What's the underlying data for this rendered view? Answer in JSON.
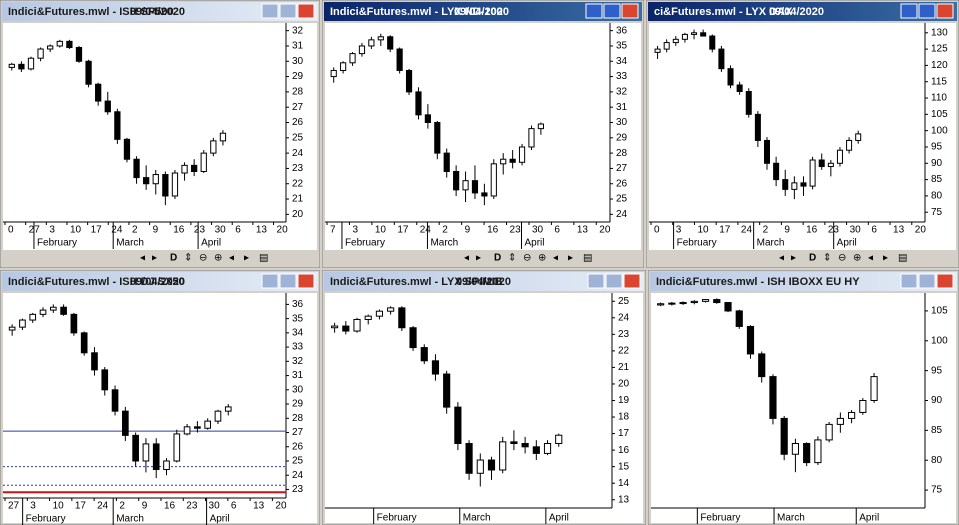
{
  "toolbar_letter": "D",
  "chart_data": [
    {
      "type": "candlestick",
      "title": "Indici&Futures.mwl - ISH SP500",
      "date": "09/04/2020",
      "active": false,
      "ylim": [
        19.5,
        32.5
      ],
      "yticks": [
        20,
        21,
        22,
        23,
        24,
        25,
        26,
        27,
        28,
        29,
        30,
        31,
        32
      ],
      "days": [
        "0",
        "27",
        "3",
        "10",
        "17",
        "24",
        "2",
        "9",
        "16",
        "23",
        "30",
        "6",
        "13",
        "20"
      ],
      "months": [
        "February",
        "March",
        "April"
      ],
      "candles": [
        [
          29.6,
          29.9,
          29.4,
          29.8
        ],
        [
          29.8,
          30.0,
          29.3,
          29.5
        ],
        [
          29.5,
          30.3,
          29.4,
          30.2
        ],
        [
          30.2,
          30.9,
          30.0,
          30.8
        ],
        [
          30.8,
          31.1,
          30.6,
          31.0
        ],
        [
          31.0,
          31.4,
          30.9,
          31.3
        ],
        [
          31.3,
          31.4,
          30.8,
          30.9
        ],
        [
          30.9,
          31.0,
          29.9,
          30.0
        ],
        [
          30.0,
          30.1,
          28.3,
          28.5
        ],
        [
          28.5,
          28.6,
          27.1,
          27.4
        ],
        [
          27.4,
          28.0,
          26.5,
          26.7
        ],
        [
          26.7,
          26.9,
          24.6,
          24.9
        ],
        [
          24.9,
          25.0,
          23.4,
          23.6
        ],
        [
          23.6,
          23.8,
          22.0,
          22.4
        ],
        [
          22.4,
          23.2,
          21.6,
          22.0
        ],
        [
          22.0,
          22.9,
          21.3,
          22.6
        ],
        [
          22.6,
          22.8,
          20.6,
          21.2
        ],
        [
          21.2,
          22.9,
          21.0,
          22.7
        ],
        [
          22.7,
          23.4,
          22.2,
          23.2
        ],
        [
          23.2,
          23.6,
          22.5,
          22.8
        ],
        [
          22.8,
          24.2,
          22.7,
          24.0
        ],
        [
          24.0,
          25.0,
          23.8,
          24.8
        ],
        [
          24.8,
          25.5,
          24.5,
          25.3
        ]
      ]
    },
    {
      "type": "candlestick",
      "title": "Indici&Futures.mwl - LYX ND-100",
      "date": "09/04/2020",
      "active": true,
      "ylim": [
        23.5,
        36.5
      ],
      "yticks": [
        24,
        25,
        26,
        27,
        28,
        29,
        30,
        31,
        32,
        33,
        34,
        35,
        36
      ],
      "days": [
        "7",
        "3",
        "10",
        "17",
        "24",
        "2",
        "9",
        "16",
        "23",
        "30",
        "6",
        "13",
        "20"
      ],
      "months": [
        "February",
        "March",
        "April"
      ],
      "candles": [
        [
          33.0,
          33.6,
          32.6,
          33.4
        ],
        [
          33.4,
          34.0,
          33.2,
          33.9
        ],
        [
          33.9,
          34.6,
          33.7,
          34.5
        ],
        [
          34.5,
          35.2,
          34.3,
          35.0
        ],
        [
          35.0,
          35.6,
          34.8,
          35.4
        ],
        [
          35.4,
          35.8,
          35.0,
          35.6
        ],
        [
          35.6,
          35.7,
          34.6,
          34.8
        ],
        [
          34.8,
          34.9,
          33.2,
          33.4
        ],
        [
          33.4,
          33.5,
          31.8,
          32.0
        ],
        [
          32.0,
          32.3,
          30.2,
          30.5
        ],
        [
          30.5,
          31.2,
          29.6,
          30.0
        ],
        [
          30.0,
          30.1,
          27.6,
          28.0
        ],
        [
          28.0,
          28.3,
          26.4,
          26.8
        ],
        [
          26.8,
          27.2,
          25.2,
          25.6
        ],
        [
          25.6,
          26.8,
          24.8,
          26.2
        ],
        [
          26.2,
          27.2,
          25.0,
          25.4
        ],
        [
          25.4,
          26.0,
          24.6,
          25.2
        ],
        [
          25.2,
          27.6,
          25.0,
          27.3
        ],
        [
          27.3,
          28.0,
          26.6,
          27.6
        ],
        [
          27.6,
          28.2,
          27.0,
          27.4
        ],
        [
          27.4,
          28.6,
          27.2,
          28.4
        ],
        [
          28.4,
          29.8,
          28.2,
          29.6
        ],
        [
          29.6,
          30.0,
          29.2,
          29.9
        ]
      ]
    },
    {
      "type": "candlestick",
      "title": "ci&Futures.mwl - LYX DAX",
      "date": "09/04/2020",
      "active": true,
      "ylim": [
        72,
        133
      ],
      "yticks": [
        75,
        80,
        85,
        90,
        95,
        100,
        105,
        110,
        115,
        120,
        125,
        130
      ],
      "days": [
        "0",
        "3",
        "10",
        "17",
        "24",
        "2",
        "9",
        "16",
        "23",
        "30",
        "6",
        "13",
        "20"
      ],
      "months": [
        "February",
        "March",
        "April"
      ],
      "candles": [
        [
          124,
          126,
          122,
          125
        ],
        [
          125,
          128,
          124,
          127
        ],
        [
          127,
          129,
          126,
          128
        ],
        [
          128,
          130,
          127,
          129.5
        ],
        [
          129.5,
          131,
          128,
          130
        ],
        [
          130,
          131,
          129,
          129
        ],
        [
          129,
          129.5,
          124,
          125
        ],
        [
          125,
          126,
          118,
          119
        ],
        [
          119,
          120,
          113,
          114
        ],
        [
          114,
          115,
          111,
          112
        ],
        [
          112,
          113,
          104,
          105
        ],
        [
          105,
          106,
          95,
          97
        ],
        [
          97,
          98,
          88,
          90
        ],
        [
          90,
          92,
          83,
          85
        ],
        [
          85,
          88,
          80,
          82
        ],
        [
          82,
          86,
          79,
          84
        ],
        [
          84,
          86,
          80,
          83
        ],
        [
          83,
          92,
          82,
          91
        ],
        [
          91,
          93,
          88,
          89
        ],
        [
          89,
          91,
          86,
          90
        ],
        [
          90,
          95,
          89,
          94
        ],
        [
          94,
          98,
          93,
          97
        ],
        [
          97,
          100,
          96,
          99
        ]
      ]
    },
    {
      "type": "candlestick",
      "title": "Indici&Futures.mwl - ISH DJ SX50",
      "date": "09/04/2020",
      "active": false,
      "ylim": [
        22.4,
        36.8
      ],
      "yticks": [
        23,
        24,
        25,
        26,
        27,
        28,
        29,
        30,
        31,
        32,
        33,
        34,
        35,
        36
      ],
      "days": [
        "27",
        "3",
        "10",
        "17",
        "24",
        "2",
        "9",
        "16",
        "23",
        "30",
        "6",
        "13",
        "20"
      ],
      "months": [
        "February",
        "March",
        "April"
      ],
      "levels": [
        {
          "value": 27.1,
          "color": "#2d3f9e",
          "style": "solid"
        },
        {
          "value": 24.6,
          "color": "#2d3f9e",
          "style": "dotted"
        },
        {
          "value": 23.3,
          "color": "#2d3f9e",
          "style": "dotted"
        },
        {
          "value": 22.8,
          "color": "#d01010",
          "style": "solid"
        }
      ],
      "candles": [
        [
          34.2,
          34.6,
          33.8,
          34.4
        ],
        [
          34.4,
          35.0,
          34.2,
          34.9
        ],
        [
          34.9,
          35.4,
          34.7,
          35.3
        ],
        [
          35.3,
          35.8,
          35.1,
          35.6
        ],
        [
          35.6,
          36.0,
          35.4,
          35.8
        ],
        [
          35.8,
          36.0,
          35.2,
          35.3
        ],
        [
          35.3,
          35.4,
          33.8,
          34.0
        ],
        [
          34.0,
          34.1,
          32.4,
          32.6
        ],
        [
          32.6,
          33.0,
          31.0,
          31.4
        ],
        [
          31.4,
          31.6,
          29.6,
          30.0
        ],
        [
          30.0,
          30.3,
          28.2,
          28.5
        ],
        [
          28.5,
          28.8,
          26.4,
          26.8
        ],
        [
          26.8,
          27.0,
          24.6,
          25.0
        ],
        [
          25.0,
          26.6,
          24.2,
          26.2
        ],
        [
          26.2,
          26.6,
          23.8,
          24.4
        ],
        [
          24.4,
          25.2,
          24.0,
          25.0
        ],
        [
          25.0,
          27.2,
          24.9,
          26.9
        ],
        [
          26.9,
          27.6,
          26.8,
          27.4
        ],
        [
          27.4,
          27.8,
          27.0,
          27.3
        ],
        [
          27.3,
          28.0,
          27.2,
          27.8
        ],
        [
          27.8,
          28.6,
          27.6,
          28.5
        ],
        [
          28.5,
          29.0,
          28.2,
          28.8
        ]
      ]
    },
    {
      "type": "candlestick",
      "title": "Indici&Futures.mwl - LYX SP/MIB",
      "date": "09/04/2020",
      "active": false,
      "ylim": [
        12.5,
        25.5
      ],
      "yticks": [
        13,
        14,
        15,
        16,
        17,
        18,
        19,
        20,
        21,
        22,
        23,
        24,
        25
      ],
      "months": [
        "February",
        "March",
        "April"
      ],
      "candles": [
        [
          23.4,
          23.7,
          23.1,
          23.5
        ],
        [
          23.5,
          23.8,
          23.0,
          23.2
        ],
        [
          23.2,
          24.0,
          23.1,
          23.9
        ],
        [
          23.9,
          24.2,
          23.6,
          24.1
        ],
        [
          24.1,
          24.5,
          23.9,
          24.4
        ],
        [
          24.4,
          24.7,
          24.2,
          24.6
        ],
        [
          24.6,
          24.7,
          23.2,
          23.4
        ],
        [
          23.4,
          23.5,
          22.0,
          22.2
        ],
        [
          22.2,
          22.4,
          21.2,
          21.4
        ],
        [
          21.4,
          21.8,
          20.2,
          20.6
        ],
        [
          20.6,
          20.8,
          18.2,
          18.6
        ],
        [
          18.6,
          18.9,
          16.0,
          16.4
        ],
        [
          16.4,
          16.6,
          14.2,
          14.6
        ],
        [
          14.6,
          15.8,
          13.8,
          15.4
        ],
        [
          15.4,
          15.6,
          14.2,
          14.8
        ],
        [
          14.8,
          16.8,
          14.6,
          16.5
        ],
        [
          16.5,
          17.2,
          16.0,
          16.4
        ],
        [
          16.4,
          16.8,
          15.8,
          16.2
        ],
        [
          16.2,
          16.6,
          15.4,
          15.8
        ],
        [
          15.8,
          16.6,
          15.7,
          16.4
        ],
        [
          16.4,
          17.0,
          16.2,
          16.9
        ]
      ]
    },
    {
      "type": "candlestick",
      "title": "Indici&Futures.mwl - ISH IBOXX EU HY",
      "active": false,
      "ylim": [
        72,
        108
      ],
      "yticks": [
        75,
        80,
        85,
        90,
        95,
        100,
        105
      ],
      "months": [
        "February",
        "March",
        "April"
      ],
      "candles": [
        [
          106,
          106.4,
          105.8,
          106.2
        ],
        [
          106.2,
          106.5,
          105.9,
          106.3
        ],
        [
          106.3,
          106.6,
          106.0,
          106.4
        ],
        [
          106.4,
          106.8,
          106.1,
          106.6
        ],
        [
          106.6,
          107.0,
          106.4,
          106.9
        ],
        [
          106.9,
          107.1,
          106.2,
          106.4
        ],
        [
          106.4,
          106.5,
          104.8,
          105.0
        ],
        [
          105.0,
          105.2,
          102.0,
          102.4
        ],
        [
          102.4,
          102.6,
          97.0,
          97.8
        ],
        [
          97.8,
          98.2,
          93.0,
          94.0
        ],
        [
          94.0,
          94.4,
          86.0,
          87.0
        ],
        [
          87.0,
          87.4,
          80.0,
          81.0
        ],
        [
          81.0,
          83.6,
          78.0,
          82.8
        ],
        [
          82.8,
          83.0,
          79.0,
          79.6
        ],
        [
          79.6,
          84.0,
          79.2,
          83.4
        ],
        [
          83.4,
          86.4,
          83.0,
          86.0
        ],
        [
          86.0,
          88.0,
          84.6,
          87.0
        ],
        [
          87.0,
          88.4,
          86.2,
          88.0
        ],
        [
          88.0,
          90.4,
          87.6,
          90.0
        ],
        [
          90.0,
          94.6,
          89.6,
          94.0
        ]
      ]
    }
  ]
}
